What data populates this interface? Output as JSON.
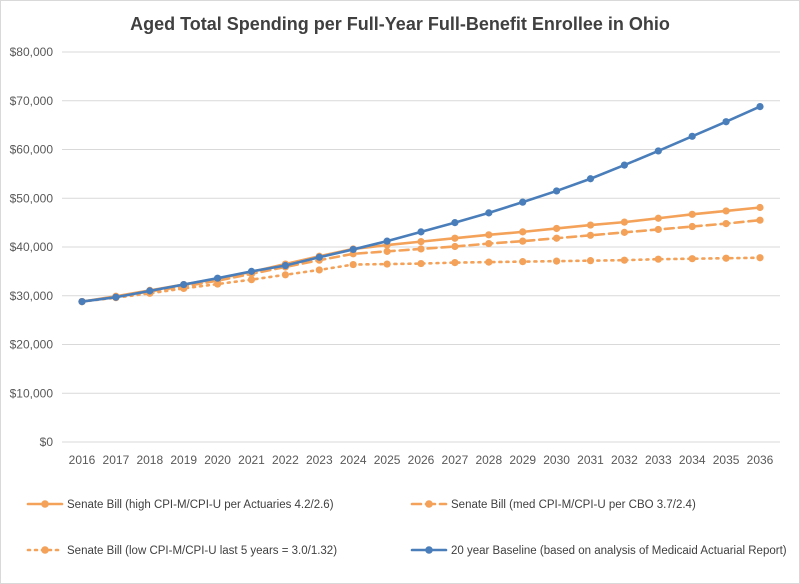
{
  "chart_data": {
    "type": "line",
    "title": "Aged Total Spending per Full-Year Full-Benefit Enrollee in Ohio",
    "xlabel": "",
    "ylabel": "",
    "ylim": [
      0,
      80000
    ],
    "yticks": [
      0,
      10000,
      20000,
      30000,
      40000,
      50000,
      60000,
      70000,
      80000
    ],
    "ytick_labels": [
      "$0",
      "$10,000",
      "$20,000",
      "$30,000",
      "$40,000",
      "$50,000",
      "$60,000",
      "$70,000",
      "$80,000"
    ],
    "categories": [
      "2016",
      "2017",
      "2018",
      "2019",
      "2020",
      "2021",
      "2022",
      "2023",
      "2024",
      "2025",
      "2026",
      "2027",
      "2028",
      "2029",
      "2030",
      "2031",
      "2032",
      "2033",
      "2034",
      "2035",
      "2036"
    ],
    "grid": true,
    "legend_position": "bottom",
    "series": [
      {
        "name": "Senate Bill (high CPI-M/CPI-U per Actuaries 4.2/2.6)",
        "color": "#f4a259",
        "style": "solid",
        "values": [
          28800,
          29900,
          31100,
          32300,
          33500,
          34900,
          36500,
          38100,
          39600,
          40400,
          41100,
          41800,
          42500,
          43100,
          43800,
          44500,
          45100,
          45900,
          46700,
          47400,
          48100
        ]
      },
      {
        "name": "Senate Bill (med CPI-M/CPI-U per CBO 3.7/2.4)",
        "color": "#f4a259",
        "style": "dashed",
        "values": [
          28800,
          29800,
          30900,
          31900,
          33100,
          34500,
          35900,
          37300,
          38600,
          39100,
          39600,
          40100,
          40700,
          41200,
          41800,
          42400,
          43000,
          43600,
          44200,
          44800,
          45500
        ]
      },
      {
        "name": "Senate Bill (low CPI-M/CPI-U last 5 years = 3.0/1.32)",
        "color": "#f4a259",
        "style": "dotted",
        "values": [
          28800,
          29600,
          30500,
          31500,
          32400,
          33300,
          34300,
          35300,
          36400,
          36500,
          36600,
          36800,
          36900,
          37000,
          37100,
          37200,
          37300,
          37500,
          37600,
          37700,
          37800
        ]
      },
      {
        "name": "20 year Baseline (based on analysis of Medicaid Actuarial Report)",
        "color": "#4a7ebb",
        "style": "solid",
        "values": [
          28800,
          29700,
          31000,
          32300,
          33600,
          35000,
          36200,
          37900,
          39500,
          41200,
          43100,
          45000,
          47000,
          49200,
          51500,
          54000,
          56800,
          59700,
          62700,
          65700,
          68800
        ]
      }
    ]
  }
}
